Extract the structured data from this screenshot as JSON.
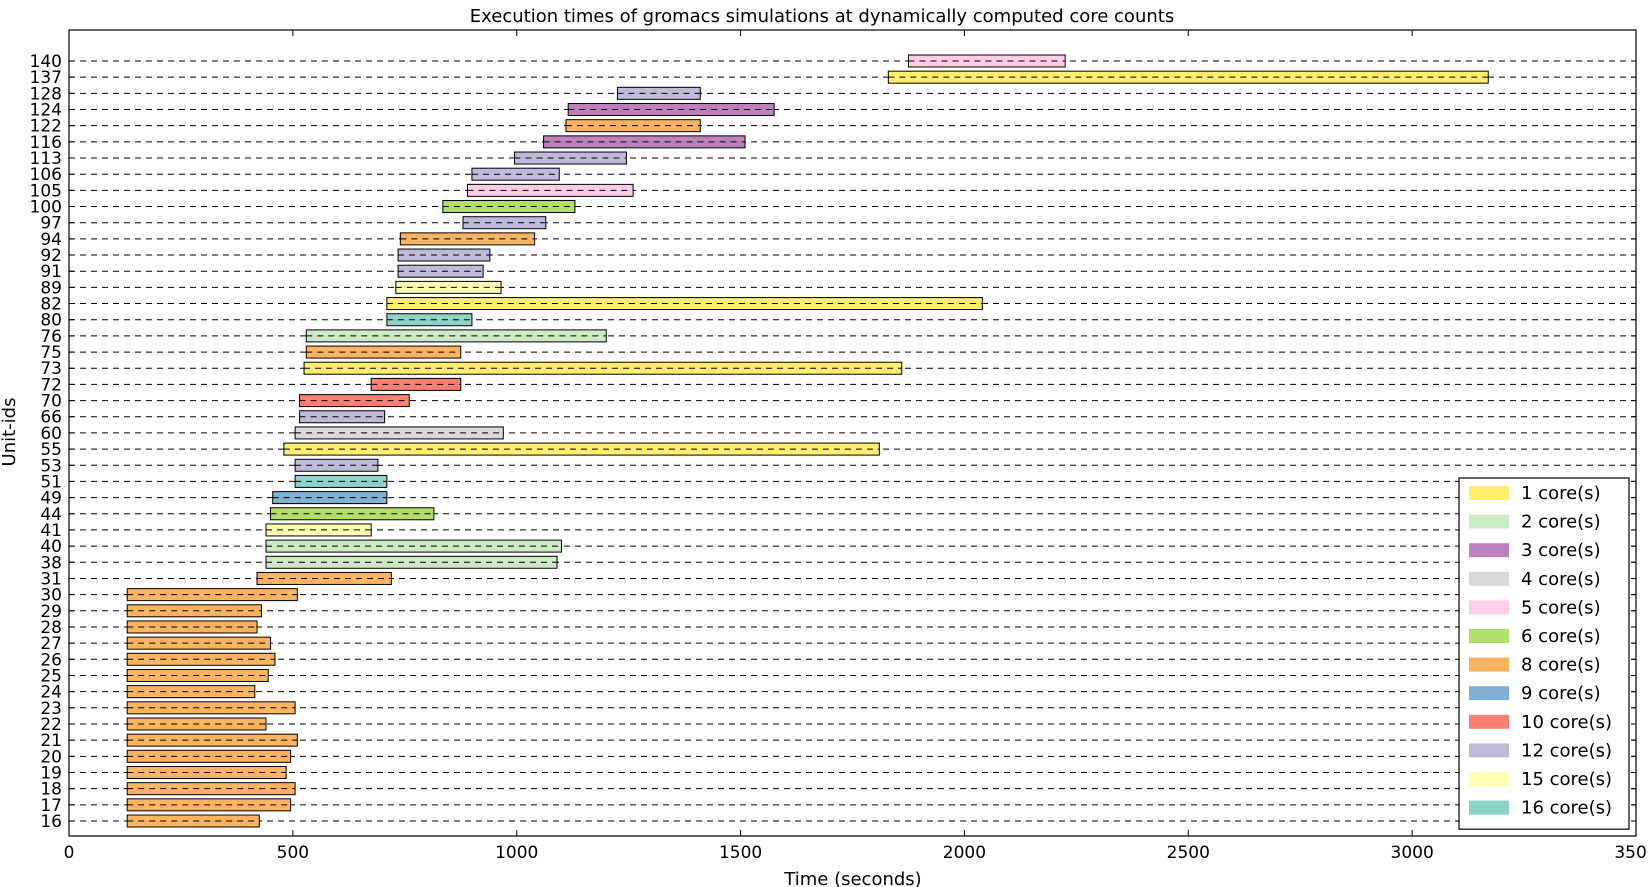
{
  "chart_data": {
    "type": "gantt",
    "title": "Execution times of gromacs simulations at dynamically computed core counts",
    "xlabel": "Time (seconds)",
    "ylabel": "Unit-ids",
    "xlim": [
      0,
      3500
    ],
    "xticks": [
      "0",
      "500",
      "1000",
      "1500",
      "2000",
      "2500",
      "3000",
      "3500"
    ],
    "grid": "horizontal dashed lines at each unit",
    "legend_position": "lower-right",
    "legend": [
      {
        "label": "1 core(s)",
        "cores": 1,
        "color": "#ffed6f"
      },
      {
        "label": "2 core(s)",
        "cores": 2,
        "color": "#ccebc5"
      },
      {
        "label": "3 core(s)",
        "cores": 3,
        "color": "#bc80bd"
      },
      {
        "label": "4 core(s)",
        "cores": 4,
        "color": "#d9d9d9"
      },
      {
        "label": "5 core(s)",
        "cores": 5,
        "color": "#fccde5"
      },
      {
        "label": "6 core(s)",
        "cores": 6,
        "color": "#b3de69"
      },
      {
        "label": "8 core(s)",
        "cores": 8,
        "color": "#fdb462"
      },
      {
        "label": "9 core(s)",
        "cores": 9,
        "color": "#80b1d3"
      },
      {
        "label": "10 core(s)",
        "cores": 10,
        "color": "#fb8072"
      },
      {
        "label": "12 core(s)",
        "cores": 12,
        "color": "#bebada"
      },
      {
        "label": "15 core(s)",
        "cores": 15,
        "color": "#ffffb3"
      },
      {
        "label": "16 core(s)",
        "cores": 16,
        "color": "#8dd3c7"
      }
    ],
    "units": [
      {
        "id": "16",
        "start": 130,
        "end": 425,
        "cores": 8
      },
      {
        "id": "17",
        "start": 130,
        "end": 495,
        "cores": 8
      },
      {
        "id": "18",
        "start": 130,
        "end": 505,
        "cores": 8
      },
      {
        "id": "19",
        "start": 130,
        "end": 485,
        "cores": 8
      },
      {
        "id": "20",
        "start": 130,
        "end": 495,
        "cores": 8
      },
      {
        "id": "21",
        "start": 130,
        "end": 510,
        "cores": 8
      },
      {
        "id": "22",
        "start": 130,
        "end": 440,
        "cores": 8
      },
      {
        "id": "23",
        "start": 130,
        "end": 505,
        "cores": 8
      },
      {
        "id": "24",
        "start": 130,
        "end": 415,
        "cores": 8
      },
      {
        "id": "25",
        "start": 130,
        "end": 445,
        "cores": 8
      },
      {
        "id": "26",
        "start": 130,
        "end": 460,
        "cores": 8
      },
      {
        "id": "27",
        "start": 130,
        "end": 450,
        "cores": 8
      },
      {
        "id": "28",
        "start": 130,
        "end": 420,
        "cores": 8
      },
      {
        "id": "29",
        "start": 130,
        "end": 430,
        "cores": 8
      },
      {
        "id": "30",
        "start": 130,
        "end": 510,
        "cores": 8
      },
      {
        "id": "31",
        "start": 420,
        "end": 720,
        "cores": 8
      },
      {
        "id": "38",
        "start": 440,
        "end": 1090,
        "cores": 2
      },
      {
        "id": "40",
        "start": 440,
        "end": 1100,
        "cores": 2
      },
      {
        "id": "41",
        "start": 440,
        "end": 675,
        "cores": 15
      },
      {
        "id": "44",
        "start": 450,
        "end": 815,
        "cores": 6
      },
      {
        "id": "49",
        "start": 455,
        "end": 710,
        "cores": 9
      },
      {
        "id": "51",
        "start": 505,
        "end": 710,
        "cores": 16
      },
      {
        "id": "53",
        "start": 505,
        "end": 690,
        "cores": 12
      },
      {
        "id": "55",
        "start": 480,
        "end": 1810,
        "cores": 1
      },
      {
        "id": "60",
        "start": 505,
        "end": 970,
        "cores": 4
      },
      {
        "id": "66",
        "start": 515,
        "end": 705,
        "cores": 12
      },
      {
        "id": "70",
        "start": 515,
        "end": 760,
        "cores": 10
      },
      {
        "id": "72",
        "start": 675,
        "end": 875,
        "cores": 10
      },
      {
        "id": "73",
        "start": 525,
        "end": 1860,
        "cores": 1
      },
      {
        "id": "75",
        "start": 530,
        "end": 875,
        "cores": 8
      },
      {
        "id": "76",
        "start": 530,
        "end": 1200,
        "cores": 2
      },
      {
        "id": "80",
        "start": 710,
        "end": 900,
        "cores": 16
      },
      {
        "id": "82",
        "start": 710,
        "end": 2040,
        "cores": 1
      },
      {
        "id": "89",
        "start": 730,
        "end": 965,
        "cores": 15
      },
      {
        "id": "91",
        "start": 735,
        "end": 925,
        "cores": 12
      },
      {
        "id": "92",
        "start": 735,
        "end": 940,
        "cores": 12
      },
      {
        "id": "94",
        "start": 740,
        "end": 1040,
        "cores": 8
      },
      {
        "id": "97",
        "start": 880,
        "end": 1065,
        "cores": 12
      },
      {
        "id": "100",
        "start": 835,
        "end": 1130,
        "cores": 6
      },
      {
        "id": "105",
        "start": 890,
        "end": 1260,
        "cores": 5
      },
      {
        "id": "106",
        "start": 900,
        "end": 1095,
        "cores": 12
      },
      {
        "id": "113",
        "start": 995,
        "end": 1245,
        "cores": 12
      },
      {
        "id": "116",
        "start": 1060,
        "end": 1510,
        "cores": 3
      },
      {
        "id": "122",
        "start": 1110,
        "end": 1410,
        "cores": 8
      },
      {
        "id": "124",
        "start": 1115,
        "end": 1575,
        "cores": 3
      },
      {
        "id": "128",
        "start": 1225,
        "end": 1410,
        "cores": 12
      },
      {
        "id": "137",
        "start": 1830,
        "end": 3170,
        "cores": 1
      },
      {
        "id": "140",
        "start": 1875,
        "end": 2225,
        "cores": 5
      }
    ]
  }
}
